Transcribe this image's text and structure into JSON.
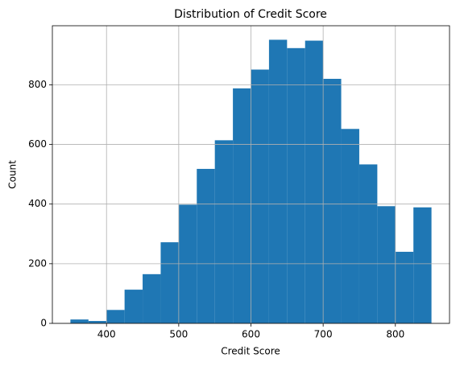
{
  "chart_data": {
    "type": "histogram",
    "title": "Distribution of Credit Score",
    "x_label": "Credit Score",
    "y_label": "Count",
    "bins": [
      350,
      375,
      400,
      425,
      450,
      475,
      500,
      525,
      550,
      575,
      600,
      625,
      650,
      675,
      700,
      725,
      750,
      775,
      800,
      825,
      850
    ],
    "values": [
      13,
      8,
      45,
      113,
      165,
      272,
      398,
      518,
      614,
      788,
      851,
      951,
      923,
      948,
      820,
      652,
      533,
      393,
      240,
      389
    ],
    "color": "#1f77b4",
    "xlim": [
      325,
      875
    ],
    "xticks": [
      400,
      500,
      600,
      700,
      800
    ],
    "ylim": [
      0,
      998
    ],
    "yticks": [
      0,
      200,
      400,
      600,
      800
    ],
    "grid": true
  }
}
